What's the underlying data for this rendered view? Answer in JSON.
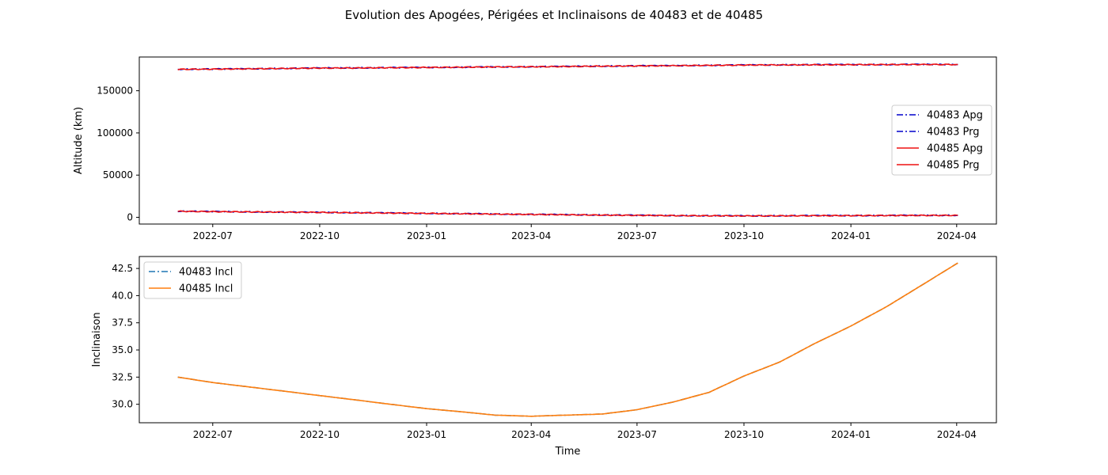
{
  "title": "Evolution des Apogées, Périgées et Inclinaisons de 40483 et de 40485",
  "chart_data": [
    {
      "type": "line",
      "ylabel": "Altitude (km)",
      "xlabel": "",
      "x_range": [
        "2022-06-01",
        "2024-04-02"
      ],
      "ylim": [
        -8000,
        190000
      ],
      "yticks": [
        0,
        50000,
        100000,
        150000
      ],
      "ytick_labels": [
        "0",
        "50000",
        "100000",
        "150000"
      ],
      "xticks": [
        "2022-07-01",
        "2022-10-01",
        "2023-01-01",
        "2023-04-01",
        "2023-07-01",
        "2023-10-01",
        "2024-01-01",
        "2024-04-01"
      ],
      "xtick_labels": [
        "2022-07",
        "2022-10",
        "2023-01",
        "2023-04",
        "2023-07",
        "2023-10",
        "2024-01",
        "2024-04"
      ],
      "legend_position": "center-right",
      "grid": false,
      "series": [
        {
          "name": "40483 Apg",
          "color": "#0000cc",
          "style": "dashdot",
          "x": [
            "2022-06-01",
            "2022-07-01",
            "2022-08-01",
            "2022-09-01",
            "2022-10-01",
            "2022-11-01",
            "2022-12-01",
            "2023-01-01",
            "2023-02-01",
            "2023-03-01",
            "2023-04-01",
            "2023-05-01",
            "2023-06-01",
            "2023-07-01",
            "2023-08-01",
            "2023-09-01",
            "2023-10-01",
            "2023-11-01",
            "2023-12-01",
            "2024-01-01",
            "2024-02-01",
            "2024-03-01",
            "2024-04-02"
          ],
          "y": [
            175500,
            175700,
            176100,
            176500,
            176900,
            177100,
            177400,
            177700,
            178000,
            178300,
            178500,
            178800,
            179200,
            179500,
            179800,
            180200,
            180500,
            180700,
            180900,
            181000,
            181100,
            181200,
            181200
          ]
        },
        {
          "name": "40483 Prg",
          "color": "#0000cc",
          "style": "dashdot",
          "x": [
            "2022-06-01",
            "2022-07-01",
            "2022-08-01",
            "2022-09-01",
            "2022-10-01",
            "2022-11-01",
            "2022-12-01",
            "2023-01-01",
            "2023-02-01",
            "2023-03-01",
            "2023-04-01",
            "2023-05-01",
            "2023-06-01",
            "2023-07-01",
            "2023-08-01",
            "2023-09-01",
            "2023-10-01",
            "2023-11-01",
            "2023-12-01",
            "2024-01-01",
            "2024-02-01",
            "2024-03-01",
            "2024-04-02"
          ],
          "y": [
            7200,
            6800,
            6500,
            6200,
            5900,
            5500,
            5100,
            4700,
            4300,
            3900,
            3500,
            3100,
            2700,
            2400,
            2100,
            1900,
            1700,
            1800,
            2000,
            2100,
            2200,
            2300,
            2400
          ]
        },
        {
          "name": "40485 Apg",
          "color": "#ee1111",
          "style": "solid",
          "x": [
            "2022-06-01",
            "2022-07-01",
            "2022-08-01",
            "2022-09-01",
            "2022-10-01",
            "2022-11-01",
            "2022-12-01",
            "2023-01-01",
            "2023-02-01",
            "2023-03-01",
            "2023-04-01",
            "2023-05-01",
            "2023-06-01",
            "2023-07-01",
            "2023-08-01",
            "2023-09-01",
            "2023-10-01",
            "2023-11-01",
            "2023-12-01",
            "2024-01-01",
            "2024-02-01",
            "2024-03-01",
            "2024-04-02"
          ],
          "y": [
            175400,
            175600,
            176000,
            176400,
            176800,
            177000,
            177300,
            177600,
            177900,
            178200,
            178400,
            178700,
            179100,
            179400,
            179700,
            180100,
            180400,
            180600,
            180800,
            180900,
            181000,
            181100,
            181100
          ]
        },
        {
          "name": "40485 Prg",
          "color": "#ee1111",
          "style": "solid",
          "x": [
            "2022-06-01",
            "2022-07-01",
            "2022-08-01",
            "2022-09-01",
            "2022-10-01",
            "2022-11-01",
            "2022-12-01",
            "2023-01-01",
            "2023-02-01",
            "2023-03-01",
            "2023-04-01",
            "2023-05-01",
            "2023-06-01",
            "2023-07-01",
            "2023-08-01",
            "2023-09-01",
            "2023-10-01",
            "2023-11-01",
            "2023-12-01",
            "2024-01-01",
            "2024-02-01",
            "2024-03-01",
            "2024-04-02"
          ],
          "y": [
            7100,
            6700,
            6400,
            6100,
            5800,
            5400,
            5000,
            4600,
            4200,
            3800,
            3400,
            3000,
            2600,
            2300,
            2000,
            1800,
            1600,
            1700,
            1900,
            2000,
            2100,
            2200,
            2300
          ]
        }
      ]
    },
    {
      "type": "line",
      "ylabel": "Inclinaison",
      "xlabel": "Time",
      "x_range": [
        "2022-06-01",
        "2024-04-02"
      ],
      "ylim": [
        28.3,
        43.6
      ],
      "yticks": [
        30.0,
        32.5,
        35.0,
        37.5,
        40.0,
        42.5
      ],
      "ytick_labels": [
        "30.0",
        "32.5",
        "35.0",
        "37.5",
        "40.0",
        "42.5"
      ],
      "xticks": [
        "2022-07-01",
        "2022-10-01",
        "2023-01-01",
        "2023-04-01",
        "2023-07-01",
        "2023-10-01",
        "2024-01-01",
        "2024-04-01"
      ],
      "xtick_labels": [
        "2022-07",
        "2022-10",
        "2023-01",
        "2023-04",
        "2023-07",
        "2023-10",
        "2024-01",
        "2024-04"
      ],
      "legend_position": "upper-left",
      "grid": false,
      "series": [
        {
          "name": "40483 Incl",
          "color": "#1f77b4",
          "style": "dashdot",
          "x": [
            "2022-06-01",
            "2022-07-01",
            "2022-08-01",
            "2022-09-01",
            "2022-10-01",
            "2022-11-01",
            "2022-12-01",
            "2023-01-01",
            "2023-02-01",
            "2023-03-01",
            "2023-04-01",
            "2023-05-01",
            "2023-06-01",
            "2023-07-01",
            "2023-08-01",
            "2023-09-01",
            "2023-10-01",
            "2023-11-01",
            "2023-12-01",
            "2024-01-01",
            "2024-02-01",
            "2024-03-01",
            "2024-04-02"
          ],
          "y": [
            32.5,
            32.0,
            31.6,
            31.2,
            30.8,
            30.4,
            30.0,
            29.6,
            29.3,
            29.0,
            28.9,
            29.0,
            29.1,
            29.5,
            30.2,
            31.1,
            32.6,
            33.9,
            35.6,
            37.2,
            39.0,
            40.9,
            43.0
          ]
        },
        {
          "name": "40485 Incl",
          "color": "#ff7f0e",
          "style": "solid",
          "x": [
            "2022-06-01",
            "2022-07-01",
            "2022-08-01",
            "2022-09-01",
            "2022-10-01",
            "2022-11-01",
            "2022-12-01",
            "2023-01-01",
            "2023-02-01",
            "2023-03-01",
            "2023-04-01",
            "2023-05-01",
            "2023-06-01",
            "2023-07-01",
            "2023-08-01",
            "2023-09-01",
            "2023-10-01",
            "2023-11-01",
            "2023-12-01",
            "2024-01-01",
            "2024-02-01",
            "2024-03-01",
            "2024-04-02"
          ],
          "y": [
            32.5,
            32.0,
            31.6,
            31.2,
            30.8,
            30.4,
            30.0,
            29.6,
            29.3,
            29.0,
            28.9,
            29.0,
            29.1,
            29.5,
            30.2,
            31.1,
            32.6,
            33.9,
            35.6,
            37.2,
            39.0,
            40.9,
            43.0
          ]
        }
      ]
    }
  ]
}
